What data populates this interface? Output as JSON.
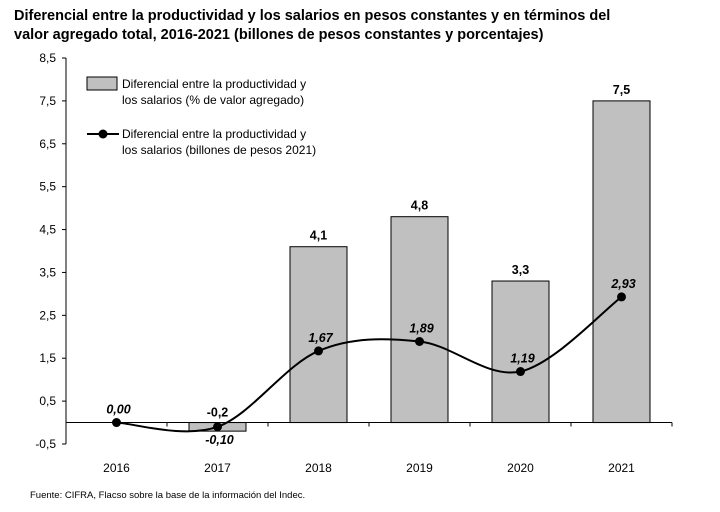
{
  "title_line1": "Diferencial entre la productividad y los salarios en pesos constantes y en términos del",
  "title_line2": "valor agregado total, 2016-2021 (billones de pesos constantes y porcentajes)",
  "source": "Fuente: CIFRA, Flacso sobre la base de la información del Indec.",
  "chart_data": {
    "type": "bar",
    "categories": [
      "2016",
      "2017",
      "2018",
      "2019",
      "2020",
      "2021"
    ],
    "ylim": [
      -0.5,
      8.5
    ],
    "yticks": [
      "8,5",
      "7,5",
      "6,5",
      "5,5",
      "4,5",
      "3,5",
      "2,5",
      "1,5",
      "0,5",
      "-0,5"
    ],
    "grid": false,
    "legend_position": "top-left",
    "series": [
      {
        "name": "Diferencial entre la productividad y los salarios  (% de valor agregado)",
        "legend_lines": [
          "Diferencial entre la productividad y",
          "los salarios  (% de valor agregado)"
        ],
        "kind": "bar",
        "color": "#c0c0c0",
        "values": [
          null,
          -0.2,
          4.1,
          4.8,
          3.3,
          7.5
        ],
        "labels": [
          "",
          "-0,2",
          "4,1",
          "4,8",
          "3,3",
          "7,5"
        ]
      },
      {
        "name": "Diferencial entre la productividad y los salarios  (billones de pesos 2021)",
        "legend_lines": [
          "Diferencial entre la productividad y",
          "los salarios  (billones de pesos 2021)"
        ],
        "kind": "line",
        "color": "#000000",
        "values": [
          0.0,
          -0.1,
          1.67,
          1.89,
          1.19,
          2.93
        ],
        "labels": [
          "0,00",
          "-0,10",
          "1,67",
          "1,89",
          "1,19",
          "2,93"
        ]
      }
    ]
  }
}
